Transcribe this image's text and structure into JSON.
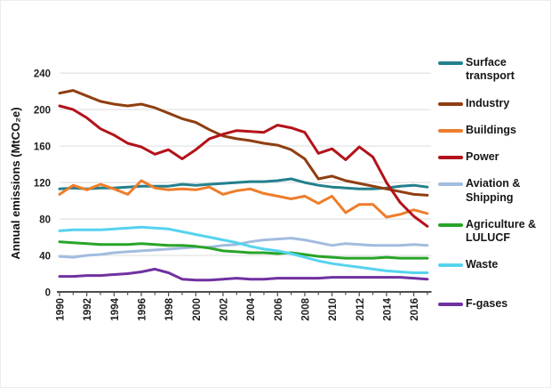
{
  "chart_data": {
    "type": "line",
    "title": "",
    "xlabel": "",
    "ylabel": "Annual emissions (MtCO₂e)",
    "grid": "horizontal",
    "legend_position": "right",
    "ylim": [
      0,
      252
    ],
    "y_ticks": [
      0,
      40,
      80,
      120,
      160,
      200,
      240
    ],
    "x_tick_labels": [
      "1990",
      "1992",
      "1994",
      "1996",
      "1998",
      "2000",
      "2002",
      "2004",
      "2006",
      "2008",
      "2010",
      "2012",
      "2014",
      "2016"
    ],
    "years": [
      1990,
      1991,
      1992,
      1993,
      1994,
      1995,
      1996,
      1997,
      1998,
      1999,
      2000,
      2001,
      2002,
      2003,
      2004,
      2005,
      2006,
      2007,
      2008,
      2009,
      2010,
      2011,
      2012,
      2013,
      2014,
      2015,
      2016,
      2017
    ],
    "series": [
      {
        "id": "surface-transport",
        "name": "Surface transport",
        "color": "#23808d",
        "values": [
          113,
          114,
          113,
          114,
          114,
          115,
          116,
          116,
          116,
          118,
          117,
          118,
          119,
          120,
          121,
          121,
          122,
          124,
          120,
          117,
          115,
          114,
          113,
          113,
          114,
          116,
          117,
          115
        ]
      },
      {
        "id": "industry",
        "name": "Industry",
        "color": "#8f3e10",
        "values": [
          218,
          221,
          215,
          209,
          206,
          204,
          206,
          202,
          196,
          190,
          186,
          178,
          171,
          168,
          166,
          163,
          161,
          156,
          146,
          124,
          127,
          122,
          119,
          116,
          113,
          110,
          107,
          106
        ]
      },
      {
        "id": "buildings",
        "name": "Buildings",
        "color": "#ef7d2c",
        "values": [
          107,
          117,
          112,
          118,
          113,
          107,
          122,
          114,
          112,
          113,
          112,
          115,
          107,
          111,
          113,
          108,
          105,
          102,
          105,
          97,
          105,
          87,
          96,
          96,
          82,
          85,
          90,
          86
        ]
      },
      {
        "id": "power",
        "name": "Power",
        "color": "#b3121a",
        "values": [
          204,
          200,
          191,
          179,
          172,
          163,
          159,
          151,
          156,
          146,
          156,
          168,
          173,
          177,
          176,
          175,
          183,
          180,
          175,
          152,
          157,
          145,
          159,
          148,
          120,
          98,
          83,
          72
        ]
      },
      {
        "id": "aviation-shipping",
        "name": "Aviation & Shipping",
        "color": "#a2bcdf",
        "values": [
          39,
          38,
          40,
          41,
          43,
          44,
          45,
          46,
          47,
          48,
          49,
          49,
          51,
          52,
          55,
          57,
          58,
          59,
          57,
          54,
          51,
          53,
          52,
          51,
          51,
          51,
          52,
          51
        ]
      },
      {
        "id": "agriculture-lulucf",
        "name": "Agriculture & LULUCF",
        "color": "#28a428",
        "values": [
          55,
          54,
          53,
          52,
          52,
          52,
          53,
          52,
          51,
          51,
          50,
          48,
          45,
          44,
          43,
          43,
          42,
          43,
          41,
          39,
          38,
          37,
          37,
          37,
          38,
          37,
          37,
          37
        ]
      },
      {
        "id": "waste",
        "name": "Waste",
        "color": "#55d3ee",
        "values": [
          67,
          68,
          68,
          68,
          69,
          70,
          71,
          70,
          69,
          66,
          63,
          60,
          57,
          54,
          50,
          47,
          45,
          42,
          38,
          34,
          31,
          29,
          27,
          25,
          23,
          22,
          21,
          21
        ]
      },
      {
        "id": "f-gases",
        "name": "F-gases",
        "color": "#7031a0",
        "values": [
          17,
          17,
          18,
          18,
          19,
          20,
          22,
          25,
          21,
          14,
          13,
          13,
          14,
          15,
          14,
          14,
          15,
          15,
          15,
          15,
          16,
          16,
          16,
          16,
          16,
          16,
          15,
          14
        ]
      }
    ]
  }
}
